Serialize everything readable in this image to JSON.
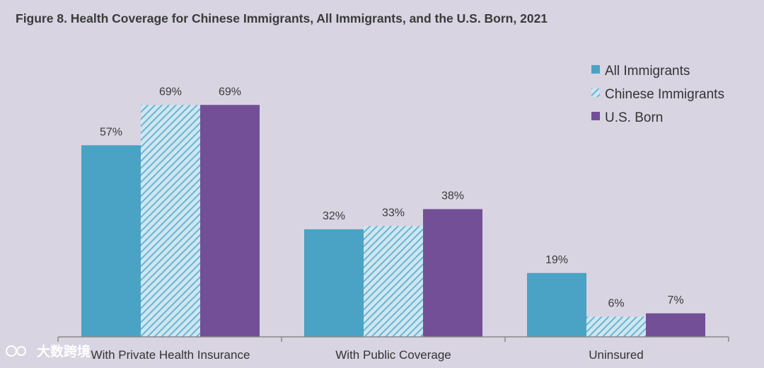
{
  "colors": {
    "background": "#d8d4e2",
    "all_immigrants": "#4aa3c4",
    "chinese_hatch_light": "#cfe6f0",
    "chinese_hatch_dark": "#5aaed0",
    "us_born": "#734f98",
    "axis": "#8a8a8a"
  },
  "watermark": {
    "text": "大数跨境"
  },
  "chart_data": {
    "type": "bar",
    "title": "Figure 8. Health Coverage for Chinese Immigrants, All Immigrants, and the U.S. Born, 2021",
    "categories": [
      "With Private Health Insurance",
      "With Public Coverage",
      "Uninsured"
    ],
    "series": [
      {
        "name": "All Immigrants",
        "values": [
          57,
          32,
          19
        ],
        "labels": [
          "57%",
          "32%",
          "19%"
        ],
        "style": "solid"
      },
      {
        "name": "Chinese Immigrants",
        "values": [
          69,
          33,
          6
        ],
        "labels": [
          "69%",
          "33%",
          "6%"
        ],
        "style": "hatched"
      },
      {
        "name": "U.S. Born",
        "values": [
          69,
          38,
          7
        ],
        "labels": [
          "69%",
          "38%",
          "7%"
        ],
        "style": "solid"
      }
    ],
    "ylim": [
      0,
      80
    ],
    "xlabel": "",
    "ylabel": "",
    "grid": false,
    "legend": "top-right"
  }
}
